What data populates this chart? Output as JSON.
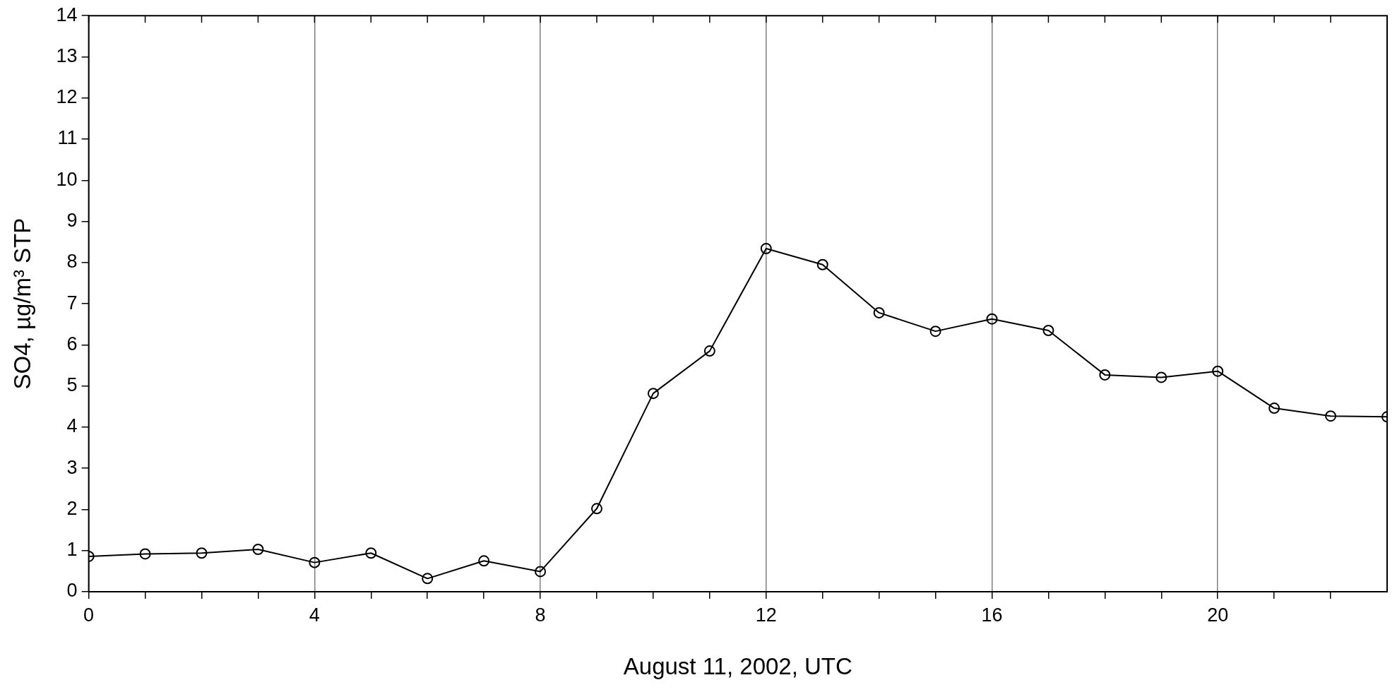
{
  "chart_data": {
    "type": "line",
    "xlabel": "August 11, 2002, UTC",
    "ylabel": "SO4, µg/m³ STP",
    "x": [
      0,
      1,
      2,
      3,
      4,
      5,
      6,
      7,
      8,
      9,
      10,
      11,
      12,
      13,
      14,
      15,
      16,
      17,
      18,
      19,
      20,
      21,
      22,
      23
    ],
    "series": [
      {
        "color": "#000000",
        "values": [
          0.86,
          0.92,
          0.94,
          1.03,
          0.71,
          0.94,
          0.32,
          0.75,
          0.49,
          2.02,
          4.82,
          5.85,
          8.34,
          7.95,
          6.78,
          6.33,
          6.63,
          6.35,
          5.27,
          5.21,
          5.36,
          4.46,
          4.27,
          4.25
        ]
      }
    ],
    "xlim": [
      0,
      23
    ],
    "xticks": [
      0,
      {
        "value": 1,
        "label": null
      },
      {
        "value": 2,
        "label": null
      },
      {
        "value": 3,
        "label": null
      },
      4,
      {
        "value": 5,
        "label": null
      },
      {
        "value": 6,
        "label": null
      },
      {
        "value": 7,
        "label": null
      },
      8,
      {
        "value": 9,
        "label": null
      },
      {
        "value": 10,
        "label": null
      },
      {
        "value": 11,
        "label": null
      },
      12,
      {
        "value": 13,
        "label": null
      },
      {
        "value": 14,
        "label": null
      },
      {
        "value": 15,
        "label": null
      },
      16,
      {
        "value": 17,
        "label": null
      },
      {
        "value": 18,
        "label": null
      },
      {
        "value": 19,
        "label": null
      },
      20,
      {
        "value": 21,
        "label": null
      },
      {
        "value": 22,
        "label": null
      }
    ],
    "ylim": [
      0,
      14
    ],
    "yticks": [
      0,
      1,
      2,
      3,
      4,
      5,
      6,
      7,
      8,
      9,
      10,
      11,
      12,
      13,
      14
    ],
    "grid": "x",
    "legend": false,
    "marker": "circle",
    "line_style": "solid"
  }
}
